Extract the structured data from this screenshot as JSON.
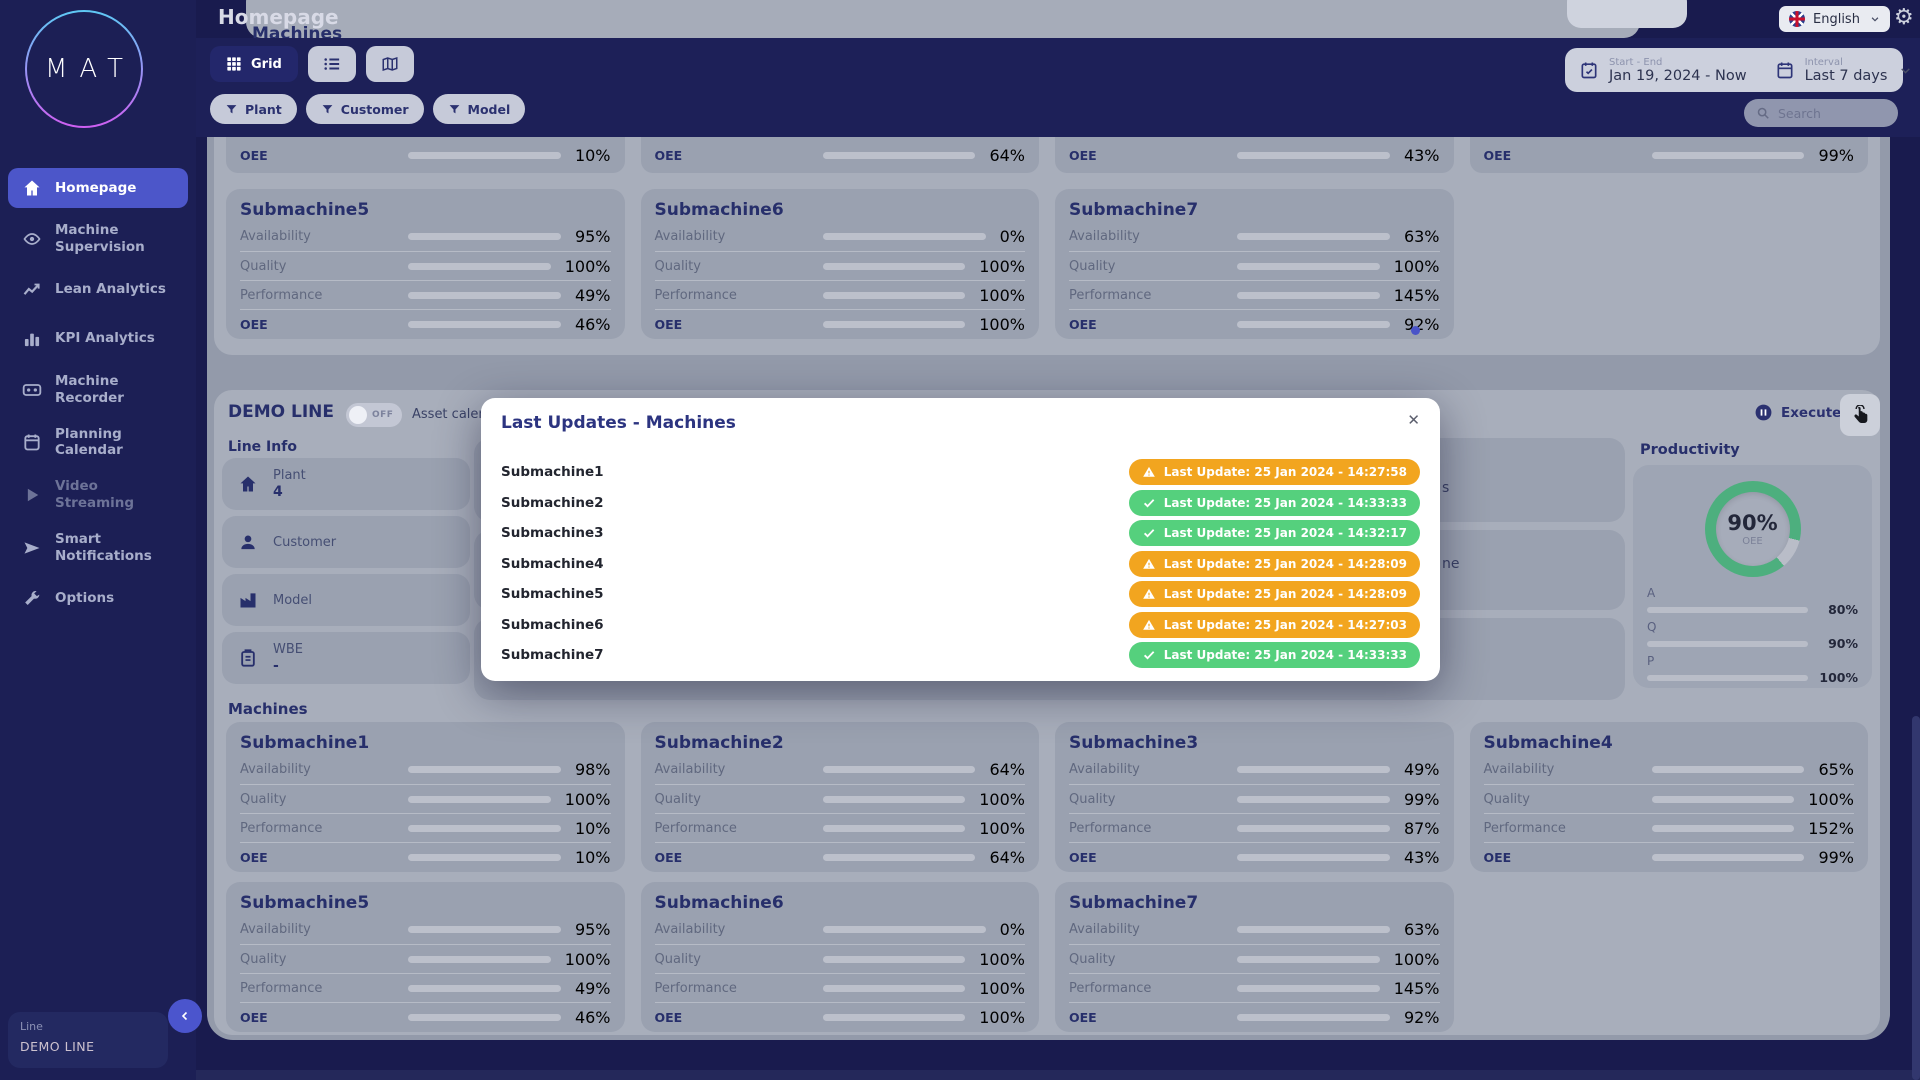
{
  "header": {
    "page_title": "Homepage",
    "section_heading": "Machines",
    "language": "English"
  },
  "logo_text": "MAT",
  "sidebar": {
    "items": [
      {
        "label": "Homepage",
        "icon": "home-icon",
        "active": true,
        "muted": false
      },
      {
        "label": "Machine Supervision",
        "icon": "eye-icon",
        "active": false,
        "muted": false
      },
      {
        "label": "Lean Analytics",
        "icon": "trend-icon",
        "active": false,
        "muted": false
      },
      {
        "label": "KPI Analytics",
        "icon": "bar-chart-icon",
        "active": false,
        "muted": false
      },
      {
        "label": "Machine Recorder",
        "icon": "recorder-icon",
        "active": false,
        "muted": false
      },
      {
        "label": "Planning Calendar",
        "icon": "calendar-icon",
        "active": false,
        "muted": false
      },
      {
        "label": "Video Streaming",
        "icon": "play-icon",
        "active": false,
        "muted": true
      },
      {
        "label": "Smart Notifications",
        "icon": "send-icon",
        "active": false,
        "muted": false
      },
      {
        "label": "Options",
        "icon": "wrench-icon",
        "active": false,
        "muted": false
      }
    ]
  },
  "toolbar": {
    "grid_label": "Grid",
    "filters": [
      "Plant",
      "Customer",
      "Model"
    ],
    "date_range": {
      "label": "Start - End",
      "value": "Jan 19, 2024 - Now"
    },
    "interval": {
      "label": "Interval",
      "value": "Last 7 days"
    },
    "search_placeholder": "Search",
    "gear_glyph": "⚙"
  },
  "top_section": {
    "cut_row_oee": [
      {
        "label": "OEE",
        "value": 10,
        "color": "red"
      },
      {
        "label": "OEE",
        "value": 64,
        "color": "lime"
      },
      {
        "label": "OEE",
        "value": 43,
        "color": "amber"
      },
      {
        "label": "OEE",
        "value": 99,
        "color": "green"
      }
    ]
  },
  "demo_line": {
    "title": "DEMO LINE",
    "toggle_label": "OFF",
    "asset_calendar_label": "Asset calendar",
    "execute_label": "Execute",
    "line_info": {
      "heading": "Line Info",
      "items": [
        {
          "label": "Plant",
          "value": "4",
          "icon": "home-icon"
        },
        {
          "label": "Customer",
          "value": "",
          "icon": "user-icon"
        },
        {
          "label": "Model",
          "value": "",
          "icon": "factory-icon"
        },
        {
          "label": "WBE",
          "value": "-",
          "icon": "clipboard-icon"
        }
      ]
    },
    "hidden_card_fragments": [
      "s",
      "ne"
    ],
    "productivity": {
      "title": "Productivity",
      "gauge": {
        "value": 90,
        "unit": "%",
        "caption": "OEE"
      },
      "bars": [
        {
          "label": "A",
          "value": 80,
          "color": "lime2"
        },
        {
          "label": "Q",
          "value": 90,
          "color": "green"
        },
        {
          "label": "P",
          "value": 100,
          "color": "green"
        }
      ]
    }
  },
  "machines": {
    "heading": "Machines",
    "metric_labels": [
      "Availability",
      "Quality",
      "Performance",
      "OEE"
    ],
    "cards": [
      {
        "name": "Submachine1",
        "metrics": [
          {
            "label": "Availability",
            "value": 98,
            "color": "green"
          },
          {
            "label": "Quality",
            "value": 100,
            "color": "green"
          },
          {
            "label": "Performance",
            "value": 10,
            "color": "red"
          },
          {
            "label": "OEE",
            "value": 10,
            "color": "red"
          }
        ]
      },
      {
        "name": "Submachine2",
        "metrics": [
          {
            "label": "Availability",
            "value": 64,
            "color": "lime"
          },
          {
            "label": "Quality",
            "value": 100,
            "color": "green"
          },
          {
            "label": "Performance",
            "value": 100,
            "color": "green"
          },
          {
            "label": "OEE",
            "value": 64,
            "color": "lime"
          }
        ]
      },
      {
        "name": "Submachine3",
        "metrics": [
          {
            "label": "Availability",
            "value": 49,
            "color": "amber"
          },
          {
            "label": "Quality",
            "value": 99,
            "color": "green"
          },
          {
            "label": "Performance",
            "value": 87,
            "color": "green2"
          },
          {
            "label": "OEE",
            "value": 43,
            "color": "amber"
          }
        ]
      },
      {
        "name": "Submachine4",
        "metrics": [
          {
            "label": "Availability",
            "value": 65,
            "color": "lime"
          },
          {
            "label": "Quality",
            "value": 100,
            "color": "green"
          },
          {
            "label": "Performance",
            "value": 152,
            "color": "blue"
          },
          {
            "label": "OEE",
            "value": 99,
            "color": "green"
          }
        ]
      },
      {
        "name": "Submachine5",
        "metrics": [
          {
            "label": "Availability",
            "value": 95,
            "color": "green"
          },
          {
            "label": "Quality",
            "value": 100,
            "color": "green"
          },
          {
            "label": "Performance",
            "value": 49,
            "color": "amber"
          },
          {
            "label": "OEE",
            "value": 46,
            "color": "amber"
          }
        ]
      },
      {
        "name": "Submachine6",
        "metrics": [
          {
            "label": "Availability",
            "value": 0,
            "color": "none"
          },
          {
            "label": "Quality",
            "value": 100,
            "color": "green"
          },
          {
            "label": "Performance",
            "value": 100,
            "color": "green"
          },
          {
            "label": "OEE",
            "value": 100,
            "color": "green"
          }
        ]
      },
      {
        "name": "Submachine7",
        "metrics": [
          {
            "label": "Availability",
            "value": 63,
            "color": "lime"
          },
          {
            "label": "Quality",
            "value": 100,
            "color": "green"
          },
          {
            "label": "Performance",
            "value": 145,
            "color": "blue"
          },
          {
            "label": "OEE",
            "value": 92,
            "color": "green"
          }
        ]
      }
    ]
  },
  "modal": {
    "title": "Last Updates - Machines",
    "close_glyph": "✕",
    "rows": [
      {
        "name": "Submachine1",
        "status": "warning",
        "text": "Last Update: 25 Jan 2024 - 14:27:58"
      },
      {
        "name": "Submachine2",
        "status": "ok",
        "text": "Last Update: 25 Jan 2024 - 14:33:33"
      },
      {
        "name": "Submachine3",
        "status": "ok",
        "text": "Last Update: 25 Jan 2024 - 14:32:17"
      },
      {
        "name": "Submachine4",
        "status": "warning",
        "text": "Last Update: 25 Jan 2024 - 14:28:09"
      },
      {
        "name": "Submachine5",
        "status": "warning",
        "text": "Last Update: 25 Jan 2024 - 14:28:09"
      },
      {
        "name": "Submachine6",
        "status": "warning",
        "text": "Last Update: 25 Jan 2024 - 14:27:03"
      },
      {
        "name": "Submachine7",
        "status": "ok",
        "text": "Last Update: 25 Jan 2024 - 14:33:33"
      }
    ]
  },
  "line_badge": {
    "label": "Line",
    "value": "DEMO LINE"
  },
  "colors": {
    "green": "#4daf7e",
    "green2": "#63ab49",
    "lime": "#9dbc35",
    "lime2": "#79b346",
    "amber": "#d2ae35",
    "red": "#c14f4f",
    "blue": "#2e7fc0",
    "none": "transparent",
    "badge_warning": "#f2a51f",
    "badge_ok": "#55d07d",
    "accent": "#4c56c9"
  }
}
